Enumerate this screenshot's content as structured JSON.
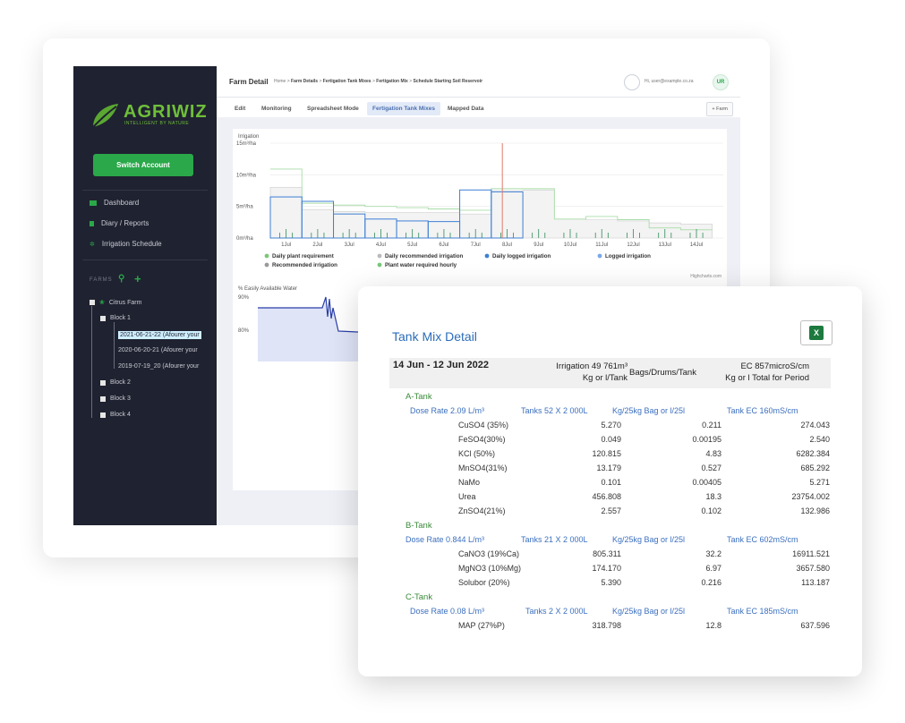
{
  "sidebar": {
    "logo_text": "AGRIWIZ",
    "logo_sub": "INTELLIGENT BY NATURE",
    "switch_account": "Switch Account",
    "nav": [
      {
        "label": "Dashboard",
        "icon": "dashboard-icon"
      },
      {
        "label": "Diary / Reports",
        "icon": "diary-icon"
      },
      {
        "label": "Irrigation Schedule",
        "icon": "irrigation-icon"
      }
    ],
    "farms_label": "FARMS",
    "tree": {
      "farm": "Citrus Farm",
      "block1": "Block 1",
      "seasons": [
        "2021-06-21-22 (Afourer your",
        "2020-06-20-21 (Afourer your",
        "2019-07-19_20 (Afourer your"
      ],
      "block2": "Block 2",
      "block3": "Block 3",
      "block4": "Block 4"
    }
  },
  "header": {
    "title": "Farm Detail",
    "breadcrumb": [
      "Home",
      "Farm Details",
      "Fertigation Tank Mixes",
      "Fertigation Mix",
      "Schedule Starting Soil Reservoir"
    ],
    "user_greeting": "Hi, user@example.co.za",
    "avatar_initials": "UR"
  },
  "tabs": [
    "Edit",
    "Monitoring",
    "Spreadsheet Mode",
    "Fertigation Tank Mixes",
    "Mapped Data"
  ],
  "active_tab": "Fertigation Tank Mixes",
  "add_farm_label": "+ Farm",
  "chart_data": [
    {
      "type": "line",
      "title": "Irrigation",
      "y_ticks": [
        "15m³/ha",
        "10m³/ha",
        "5m³/ha",
        "0m³/ha"
      ],
      "ylim": [
        0,
        15
      ],
      "categories": [
        "1Jul",
        "2Jul",
        "3Jul",
        "4Jul",
        "5Jul",
        "6Jul",
        "7Jul",
        "8Jul",
        "9Jul",
        "10Jul",
        "11Jul",
        "12Jul",
        "13Jul",
        "14Jul"
      ],
      "series": [
        {
          "name": "Daily plant requirement",
          "values": [
            8.0,
            4.5,
            4.2,
            4.0,
            4.0,
            4.0,
            3.8,
            7.5,
            7.6,
            3.0,
            2.9,
            2.7,
            2.4,
            2.2
          ]
        },
        {
          "name": "Daily recommended irrigation",
          "values": [
            10.9,
            5.5,
            5.2,
            5.0,
            4.8,
            4.6,
            4.4,
            7.8,
            7.8,
            3.0,
            3.4,
            2.9,
            1.6,
            1.3
          ]
        },
        {
          "name": "Daily logged irrigation",
          "values": [
            6.5,
            5.8,
            3.8,
            3.0,
            2.7,
            2.6,
            7.6,
            7.3,
            0,
            0,
            0,
            0,
            0,
            0
          ]
        }
      ],
      "legend": [
        "Daily plant requirement",
        "Daily recommended irrigation",
        "Daily logged irrigation",
        "Logged irrigation",
        "Recommended irrigation",
        "Plant water required hourly"
      ],
      "credit": "Highcharts.com"
    },
    {
      "type": "area",
      "title": "% Easily Available Water",
      "y_ticks": [
        "90%",
        "80%"
      ]
    }
  ],
  "tank_mix": {
    "title": "Tank Mix Detail",
    "period": "14 Jun  - 12 Jun 2022",
    "irrigation": "Irrigation 49 761m³",
    "irrigation_sub": "Kg or l/Tank",
    "bags": "Bags/Drums/Tank",
    "ec": "EC 857microS/cm",
    "ec_sub": "Kg or l Total for Period",
    "tanks": [
      {
        "name": "A-Tank",
        "dose": "Dose Rate 2.09 L/m³",
        "tanks": "Tanks 52 X  2 000L",
        "bag": "Kg/25kg Bag or l/25l",
        "ec": "Tank EC 160mS/cm",
        "rows": [
          {
            "name": "CuSO4 (35%)",
            "kg": "5.270",
            "bags": "0.211",
            "total": "274.043"
          },
          {
            "name": "FeSO4(30%)",
            "kg": "0.049",
            "bags": "0.00195",
            "total": "2.540"
          },
          {
            "name": "KCl (50%)",
            "kg": "120.815",
            "bags": "4.83",
            "total": "6282.384"
          },
          {
            "name": "MnSO4(31%)",
            "kg": "13.179",
            "bags": "0.527",
            "total": "685.292"
          },
          {
            "name": "NaMo",
            "kg": "0.101",
            "bags": "0.00405",
            "total": "5.271"
          },
          {
            "name": "Urea",
            "kg": "456.808",
            "bags": "18.3",
            "total": "23754.002"
          },
          {
            "name": "ZnSO4(21%)",
            "kg": "2.557",
            "bags": "0.102",
            "total": "132.986"
          }
        ]
      },
      {
        "name": "B-Tank",
        "dose": "Dose Rate 0.844 L/m³",
        "tanks": "Tanks 21 X  2 000L",
        "bag": "Kg/25kg Bag or l/25l",
        "ec": "Tank EC 602mS/cm",
        "rows": [
          {
            "name": "CaNO3 (19%Ca)",
            "kg": "805.311",
            "bags": "32.2",
            "total": "16911.521"
          },
          {
            "name": "MgNO3 (10%Mg)",
            "kg": "174.170",
            "bags": "6.97",
            "total": "3657.580"
          },
          {
            "name": "Solubor (20%)",
            "kg": "5.390",
            "bags": "0.216",
            "total": "113.187"
          }
        ]
      },
      {
        "name": "C-Tank",
        "dose": "Dose Rate 0.08 L/m³",
        "tanks": "Tanks 2 X  2 000L",
        "bag": "Kg/25kg Bag or l/25l",
        "ec": "Tank EC 185mS/cm",
        "rows": [
          {
            "name": "MAP (27%P)",
            "kg": "318.798",
            "bags": "12.8",
            "total": "637.596"
          }
        ]
      }
    ]
  },
  "colors": {
    "sidebar_bg": "#1f2230",
    "accent_green": "#2aa84a",
    "link_blue": "#2b6cb8",
    "tank_green": "#3a8a3a"
  }
}
